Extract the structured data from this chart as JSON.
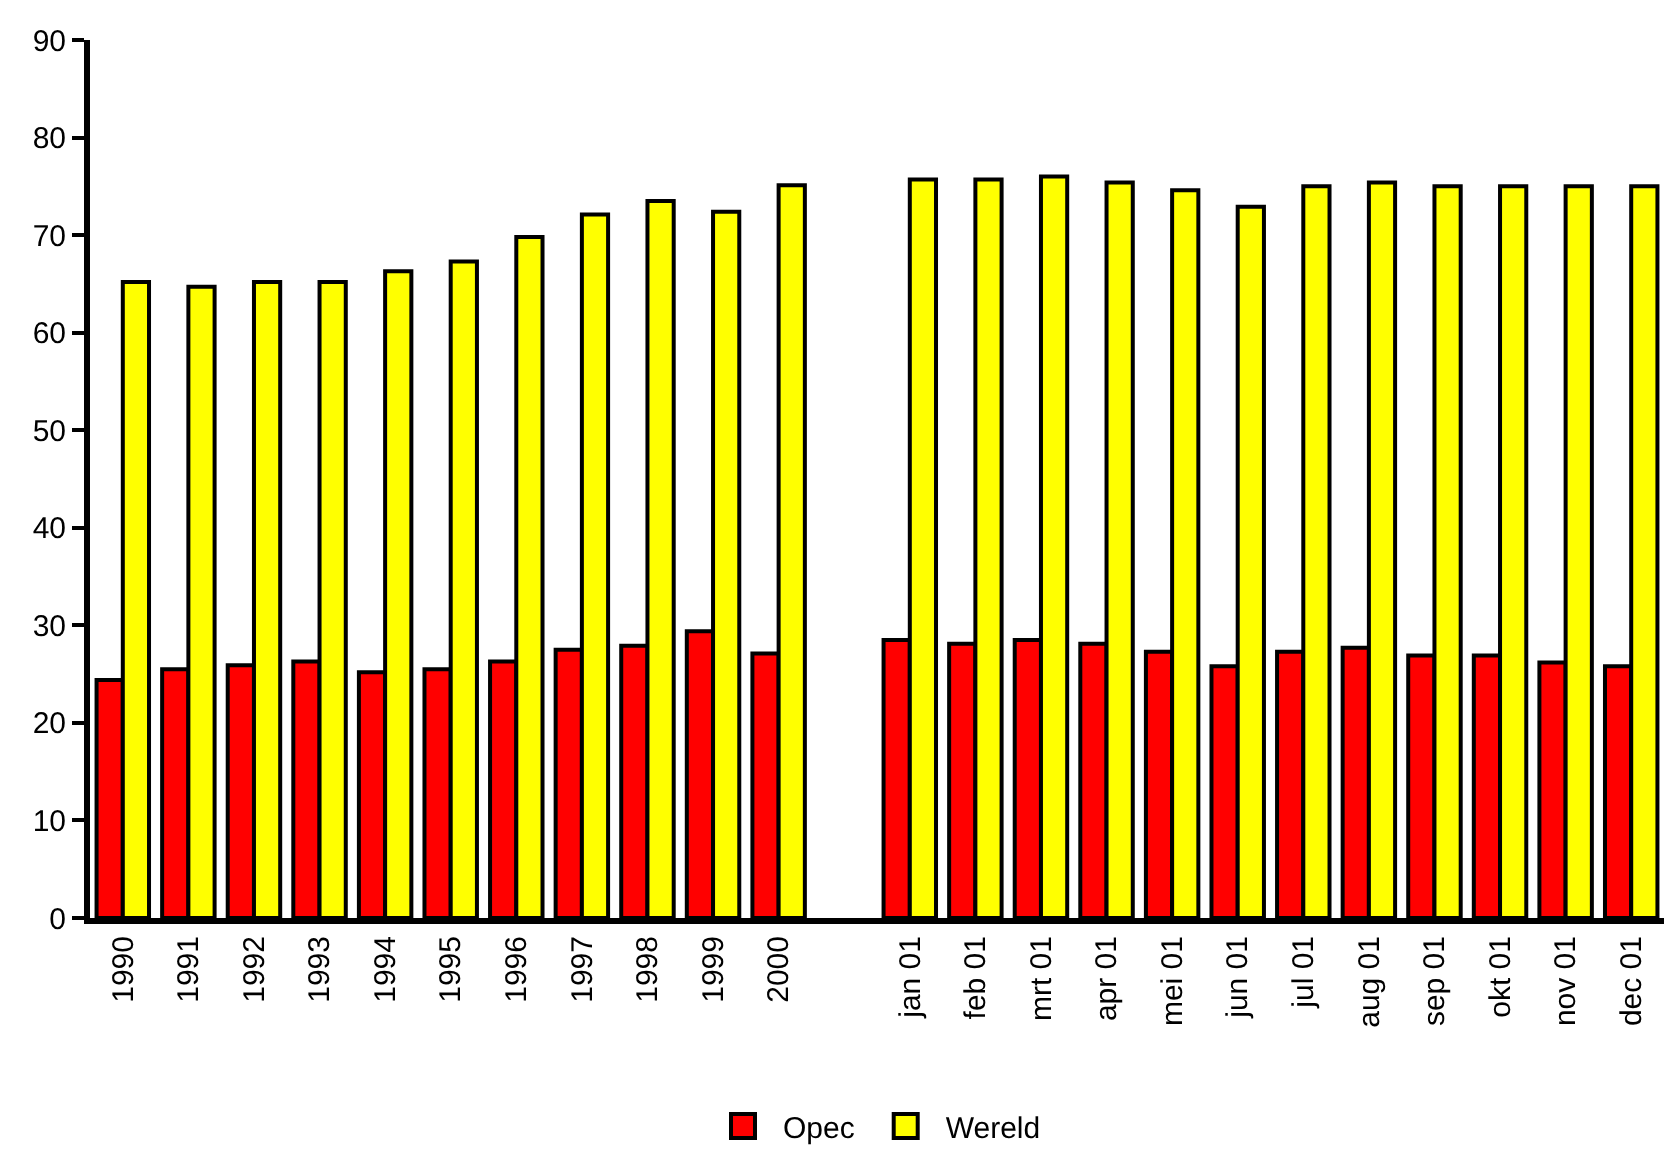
{
  "chart_data": {
    "type": "bar",
    "categories": [
      "1990",
      "1991",
      "1992",
      "1993",
      "1994",
      "1995",
      "1996",
      "1997",
      "1998",
      "1999",
      "2000",
      null,
      "jan 01",
      "feb 01",
      "mrt 01",
      "apr 01",
      "mei 01",
      "jun 01",
      "jul 01",
      "aug 01",
      "sep 01",
      "okt 01",
      "nov 01",
      "dec 01"
    ],
    "series": [
      {
        "name": "Opec",
        "color": "#ff0000",
        "values": [
          24.4,
          25.5,
          25.9,
          26.3,
          25.2,
          25.5,
          26.3,
          27.5,
          27.9,
          29.4,
          27.1,
          null,
          28.5,
          28.1,
          28.5,
          28.1,
          27.3,
          25.8,
          27.3,
          27.7,
          26.9,
          26.9,
          26.2,
          25.8
        ]
      },
      {
        "name": "Wereld",
        "color": "#ffff00",
        "values": [
          65.2,
          64.7,
          65.2,
          65.2,
          66.3,
          67.3,
          69.8,
          72.1,
          73.5,
          72.4,
          75.1,
          null,
          75.7,
          75.7,
          76.0,
          75.4,
          74.6,
          72.9,
          75.0,
          75.4,
          75.0,
          75.0,
          75.0,
          75.0
        ]
      }
    ],
    "ylim": [
      0,
      90
    ],
    "yticks": [
      0,
      10,
      20,
      30,
      40,
      50,
      60,
      70,
      80,
      90
    ],
    "legend": "bottom"
  }
}
